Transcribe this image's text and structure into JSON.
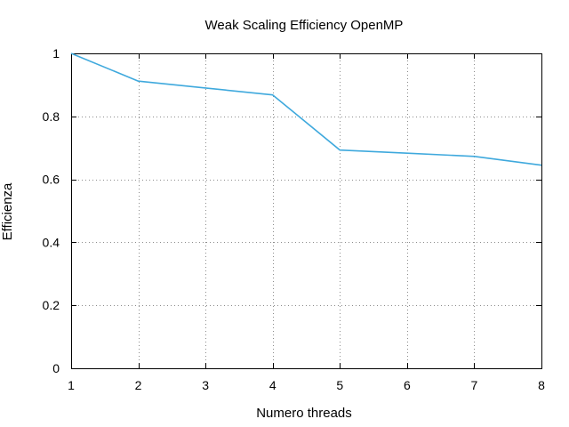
{
  "chart_data": {
    "type": "line",
    "title": "Weak Scaling Efficiency OpenMP",
    "xlabel": "Numero threads",
    "ylabel": "Efficienza",
    "xlim": [
      1,
      8
    ],
    "ylim": [
      0,
      1
    ],
    "xticks": [
      1,
      2,
      3,
      4,
      5,
      6,
      7,
      8
    ],
    "xtick_labels": [
      "1",
      "2",
      "3",
      "4",
      "5",
      "6",
      "7",
      "8"
    ],
    "yticks": [
      0,
      0.2,
      0.4,
      0.6,
      0.8,
      1
    ],
    "ytick_labels": [
      "0",
      "0.2",
      "0.4",
      "0.6",
      "0.8",
      "1"
    ],
    "grid": true,
    "legend": "none",
    "series": [
      {
        "color": "#3fa9dd",
        "x": [
          1,
          2,
          3,
          4,
          5,
          6,
          7,
          8
        ],
        "y": [
          1.0,
          0.912,
          0.89,
          0.868,
          0.693,
          0.683,
          0.673,
          0.645
        ]
      }
    ]
  }
}
